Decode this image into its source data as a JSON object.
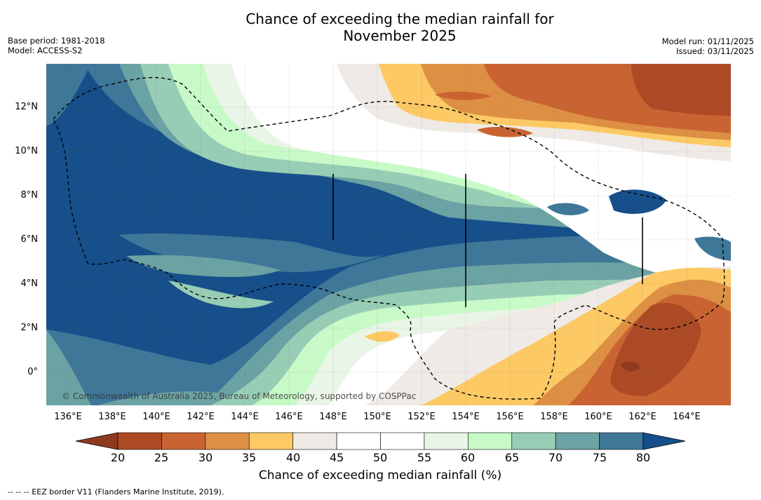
{
  "header": {
    "title_line1": "Chance of exceeding the median rainfall for",
    "title_line2": "November 2025",
    "base_period": "Base period: 1981-2018",
    "model": "Model: ACCESS-S2",
    "model_run": "Model run: 01/11/2025",
    "issued": "Issued: 03/11/2025"
  },
  "map": {
    "lat_labels": [
      "12°N",
      "10°N",
      "8°N",
      "6°N",
      "4°N",
      "2°N",
      "0°"
    ],
    "lon_labels": [
      "136°E",
      "138°E",
      "140°E",
      "142°E",
      "144°E",
      "146°E",
      "148°E",
      "150°E",
      "152°E",
      "154°E",
      "156°E",
      "158°E",
      "160°E",
      "162°E",
      "164°E"
    ],
    "copyright": "© Commonwealth of Australia 2025, Bureau of Meteorology, supported by COSPPac"
  },
  "colorbar": {
    "labels": [
      "20",
      "25",
      "30",
      "35",
      "40",
      "45",
      "50",
      "55",
      "60",
      "65",
      "70",
      "75",
      "80"
    ],
    "colors": [
      "#8e3a20",
      "#ad4a26",
      "#c96432",
      "#dd9044",
      "#fdc964",
      "#efeae5",
      "#ffffff",
      "#ffffff",
      "#e9f5e6",
      "#c8fac8",
      "#98cdb5",
      "#6ba2a3",
      "#3f7799",
      "#164f8a"
    ],
    "title": "Chance of exceeding median rainfall (%)"
  },
  "footnote": "--  --  -- EEZ border V11 (Flanders Marine Institute, 2019)."
}
